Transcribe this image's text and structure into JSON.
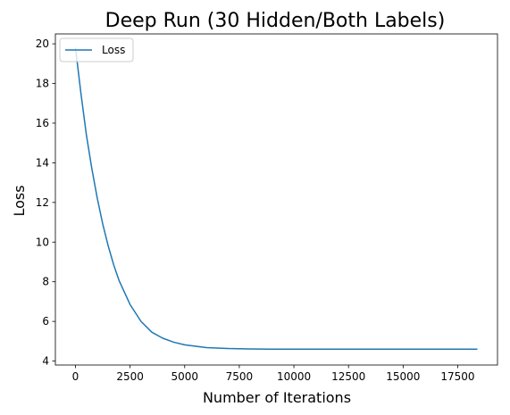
{
  "chart_data": {
    "type": "line",
    "title": "Deep Run (30 Hidden/Both Labels)",
    "xlabel": "Number of Iterations",
    "ylabel": "Loss",
    "xlim": [
      -920,
      19320
    ],
    "ylim": [
      3.8,
      20.5
    ],
    "xticks": [
      0,
      2500,
      5000,
      7500,
      10000,
      12500,
      15000,
      17500
    ],
    "yticks": [
      4,
      6,
      8,
      10,
      12,
      14,
      16,
      18,
      20
    ],
    "grid": false,
    "legend": {
      "position": "top-left",
      "entries": [
        "Loss"
      ]
    },
    "series": [
      {
        "name": "Loss",
        "color": "#1f77b4",
        "x": [
          0,
          250,
          500,
          750,
          1000,
          1250,
          1500,
          1750,
          2000,
          2500,
          3000,
          3500,
          4000,
          4500,
          5000,
          6000,
          7000,
          8000,
          9000,
          10000,
          12000,
          14000,
          16000,
          18400
        ],
        "y": [
          19.8,
          17.5,
          15.4,
          13.7,
          12.2,
          10.9,
          9.8,
          8.85,
          8.05,
          6.85,
          6.0,
          5.45,
          5.15,
          4.95,
          4.82,
          4.68,
          4.63,
          4.61,
          4.6,
          4.6,
          4.6,
          4.6,
          4.6,
          4.6
        ]
      }
    ]
  }
}
